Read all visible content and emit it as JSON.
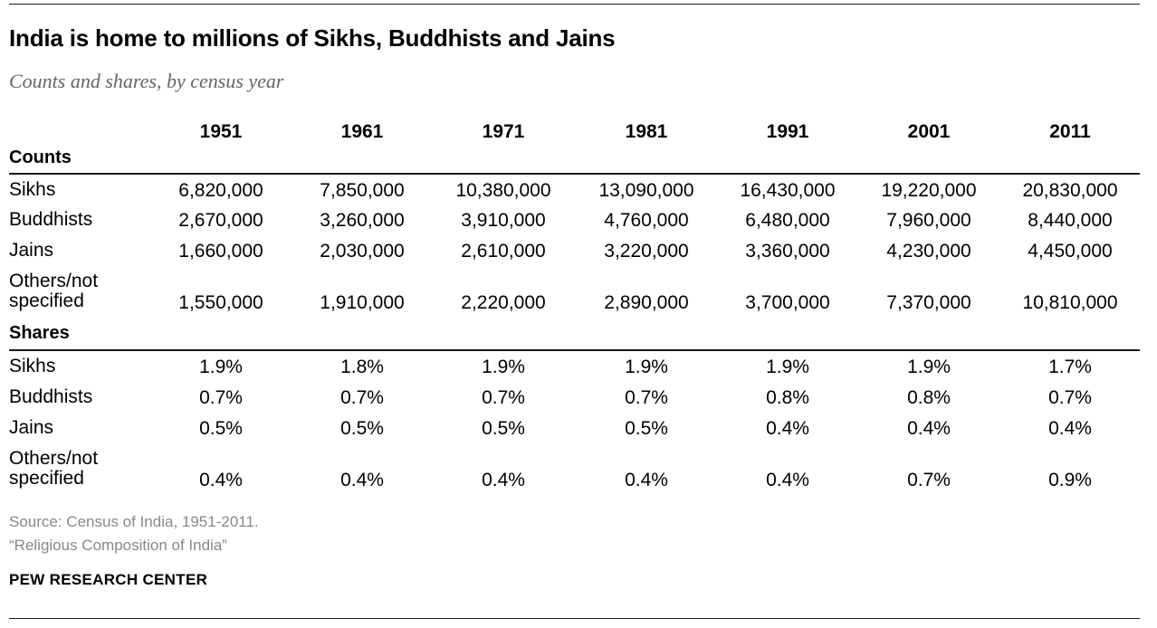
{
  "title": "India is home to millions of Sikhs, Buddhists and Jains",
  "subtitle": "Counts and shares, by census year",
  "chart_data": {
    "type": "table",
    "title": "India is home to millions of Sikhs, Buddhists and Jains",
    "subtitle": "Counts and shares, by census year",
    "columns": [
      "1951",
      "1961",
      "1971",
      "1981",
      "1991",
      "2001",
      "2011"
    ],
    "sections": [
      {
        "label": "Counts",
        "rows": [
          {
            "label": "Sikhs",
            "values": [
              "6,820,000",
              "7,850,000",
              "10,380,000",
              "13,090,000",
              "16,430,000",
              "19,220,000",
              "20,830,000"
            ]
          },
          {
            "label": "Buddhists",
            "values": [
              "2,670,000",
              "3,260,000",
              "3,910,000",
              "4,760,000",
              "6,480,000",
              "7,960,000",
              "8,440,000"
            ]
          },
          {
            "label": "Jains",
            "values": [
              "1,660,000",
              "2,030,000",
              "2,610,000",
              "3,220,000",
              "3,360,000",
              "4,230,000",
              "4,450,000"
            ]
          },
          {
            "label": "Others/not\nspecified",
            "values": [
              "1,550,000",
              "1,910,000",
              "2,220,000",
              "2,890,000",
              "3,700,000",
              "7,370,000",
              "10,810,000"
            ]
          }
        ]
      },
      {
        "label": "Shares",
        "rows": [
          {
            "label": "Sikhs",
            "values": [
              "1.9%",
              "1.8%",
              "1.9%",
              "1.9%",
              "1.9%",
              "1.9%",
              "1.7%"
            ]
          },
          {
            "label": "Buddhists",
            "values": [
              "0.7%",
              "0.7%",
              "0.7%",
              "0.7%",
              "0.8%",
              "0.8%",
              "0.7%"
            ]
          },
          {
            "label": "Jains",
            "values": [
              "0.5%",
              "0.5%",
              "0.5%",
              "0.5%",
              "0.4%",
              "0.4%",
              "0.4%"
            ]
          },
          {
            "label": "Others/not\nspecified",
            "values": [
              "0.4%",
              "0.4%",
              "0.4%",
              "0.4%",
              "0.4%",
              "0.7%",
              "0.9%"
            ]
          }
        ]
      }
    ]
  },
  "source_lines": [
    "Source: Census of India, 1951-2011.",
    "“Religious Composition of India”"
  ],
  "brand": "PEW RESEARCH CENTER",
  "colors": {
    "text": "#000000",
    "subtitle": "#666666",
    "source": "#888888",
    "rule": "#1a1a1a"
  }
}
